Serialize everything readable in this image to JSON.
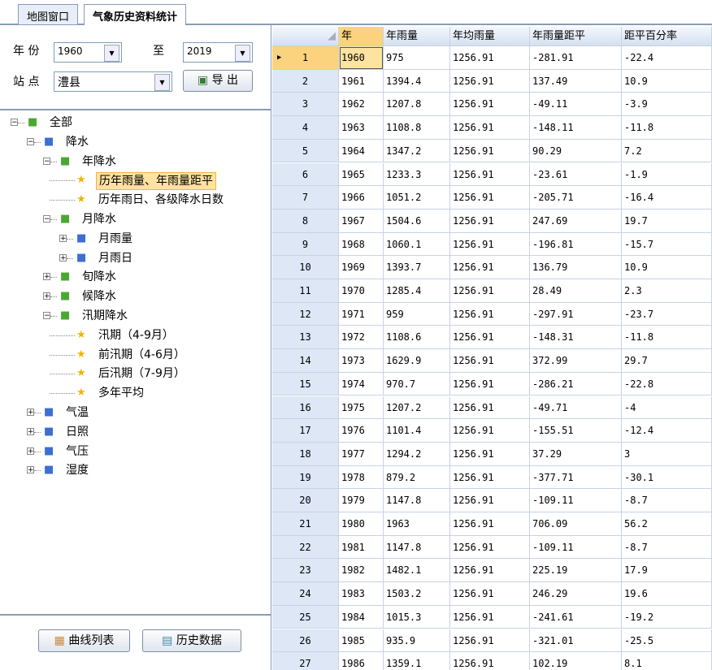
{
  "tabs": [
    "地图窗口",
    "气象历史资料统计"
  ],
  "form": {
    "year_label": "年 份",
    "year_from": "1960",
    "to_label": "至",
    "year_to": "2019",
    "station_label": "站 点",
    "station": "澧县",
    "export_button": "导 出"
  },
  "tree": {
    "label": "全部",
    "children": [
      {
        "label": "降水",
        "children": [
          {
            "label": "年降水",
            "children": [
              {
                "label": "历年雨量、年雨量距平",
                "selected": true
              },
              {
                "label": "历年雨日、各级降水日数"
              }
            ]
          },
          {
            "label": "月降水",
            "children": [
              {
                "label": "月雨量",
                "collapsed": true
              },
              {
                "label": "月雨日",
                "collapsed": true
              }
            ]
          },
          {
            "label": "旬降水",
            "collapsed": true
          },
          {
            "label": "候降水",
            "collapsed": true
          },
          {
            "label": "汛期降水",
            "children": [
              {
                "label": "汛期（4-9月）"
              },
              {
                "label": "前汛期（4-6月）"
              },
              {
                "label": "后汛期（7-9月）"
              },
              {
                "label": "多年平均"
              }
            ]
          }
        ]
      },
      {
        "label": "气温",
        "collapsed": true
      },
      {
        "label": "日照",
        "collapsed": true
      },
      {
        "label": "气压",
        "collapsed": true
      },
      {
        "label": "湿度",
        "collapsed": true
      }
    ]
  },
  "buttons": [
    "曲线列表",
    "历史数据"
  ],
  "table": {
    "columns": [
      "年",
      "年雨量",
      "年均雨量",
      "年雨量距平",
      "距平百分率"
    ],
    "rows": [
      [
        "1",
        "1960",
        "975",
        "1256.91",
        "-281.91",
        "-22.4"
      ],
      [
        "2",
        "1961",
        "1394.4",
        "1256.91",
        "137.49",
        "10.9"
      ],
      [
        "3",
        "1962",
        "1207.8",
        "1256.91",
        "-49.11",
        "-3.9"
      ],
      [
        "4",
        "1963",
        "1108.8",
        "1256.91",
        "-148.11",
        "-11.8"
      ],
      [
        "5",
        "1964",
        "1347.2",
        "1256.91",
        "90.29",
        "7.2"
      ],
      [
        "6",
        "1965",
        "1233.3",
        "1256.91",
        "-23.61",
        "-1.9"
      ],
      [
        "7",
        "1966",
        "1051.2",
        "1256.91",
        "-205.71",
        "-16.4"
      ],
      [
        "8",
        "1967",
        "1504.6",
        "1256.91",
        "247.69",
        "19.7"
      ],
      [
        "9",
        "1968",
        "1060.1",
        "1256.91",
        "-196.81",
        "-15.7"
      ],
      [
        "10",
        "1969",
        "1393.7",
        "1256.91",
        "136.79",
        "10.9"
      ],
      [
        "11",
        "1970",
        "1285.4",
        "1256.91",
        "28.49",
        "2.3"
      ],
      [
        "12",
        "1971",
        "959",
        "1256.91",
        "-297.91",
        "-23.7"
      ],
      [
        "13",
        "1972",
        "1108.6",
        "1256.91",
        "-148.31",
        "-11.8"
      ],
      [
        "14",
        "1973",
        "1629.9",
        "1256.91",
        "372.99",
        "29.7"
      ],
      [
        "15",
        "1974",
        "970.7",
        "1256.91",
        "-286.21",
        "-22.8"
      ],
      [
        "16",
        "1975",
        "1207.2",
        "1256.91",
        "-49.71",
        "-4"
      ],
      [
        "17",
        "1976",
        "1101.4",
        "1256.91",
        "-155.51",
        "-12.4"
      ],
      [
        "18",
        "1977",
        "1294.2",
        "1256.91",
        "37.29",
        "3"
      ],
      [
        "19",
        "1978",
        "879.2",
        "1256.91",
        "-377.71",
        "-30.1"
      ],
      [
        "20",
        "1979",
        "1147.8",
        "1256.91",
        "-109.11",
        "-8.7"
      ],
      [
        "21",
        "1980",
        "1963",
        "1256.91",
        "706.09",
        "56.2"
      ],
      [
        "22",
        "1981",
        "1147.8",
        "1256.91",
        "-109.11",
        "-8.7"
      ],
      [
        "23",
        "1982",
        "1482.1",
        "1256.91",
        "225.19",
        "17.9"
      ],
      [
        "24",
        "1983",
        "1503.2",
        "1256.91",
        "246.29",
        "19.6"
      ],
      [
        "25",
        "1984",
        "1015.3",
        "1256.91",
        "-241.61",
        "-19.2"
      ],
      [
        "26",
        "1985",
        "935.9",
        "1256.91",
        "-321.01",
        "-25.5"
      ],
      [
        "27",
        "1986",
        "1359.1",
        "1256.91",
        "102.19",
        "8.1"
      ]
    ],
    "selected_row": 0
  }
}
